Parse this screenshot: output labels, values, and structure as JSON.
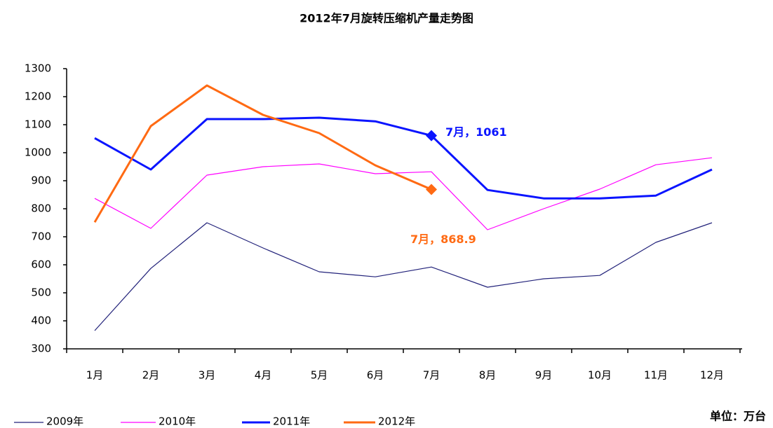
{
  "chart_data": {
    "type": "line",
    "title": "2012年7月旋转压缩机产量走势图",
    "categories": [
      "1月",
      "2月",
      "3月",
      "4月",
      "5月",
      "6月",
      "7月",
      "8月",
      "9月",
      "10月",
      "11月",
      "12月"
    ],
    "series": [
      {
        "name": "2009年",
        "color": "#22227a",
        "values": [
          365,
          587,
          750,
          660,
          575,
          557,
          592,
          520,
          550,
          562,
          680,
          750
        ]
      },
      {
        "name": "2010年",
        "color": "#ff00ff",
        "values": [
          837,
          730,
          920,
          950,
          960,
          925,
          932,
          725,
          800,
          870,
          957,
          982
        ]
      },
      {
        "name": "2011年",
        "color": "#0a14ff",
        "values": [
          1052,
          940,
          1120,
          1120,
          1125,
          1112,
          1061,
          867,
          837,
          837,
          847,
          940
        ]
      },
      {
        "name": "2012年",
        "color": "#ff6a13",
        "values": [
          752,
          1095,
          1240,
          1135,
          1070,
          955,
          868.9,
          null,
          null,
          null,
          null,
          null
        ]
      }
    ],
    "annotations": [
      {
        "text": "7月，1061",
        "series": "2011年",
        "category": "7月"
      },
      {
        "text": "7月，868.9",
        "series": "2012年",
        "category": "7月"
      }
    ],
    "unit": "单位：万台",
    "ylim": [
      300,
      1300
    ],
    "yticks": [
      300,
      400,
      500,
      600,
      700,
      800,
      900,
      1000,
      1100,
      1200,
      1300
    ],
    "grid": false
  }
}
